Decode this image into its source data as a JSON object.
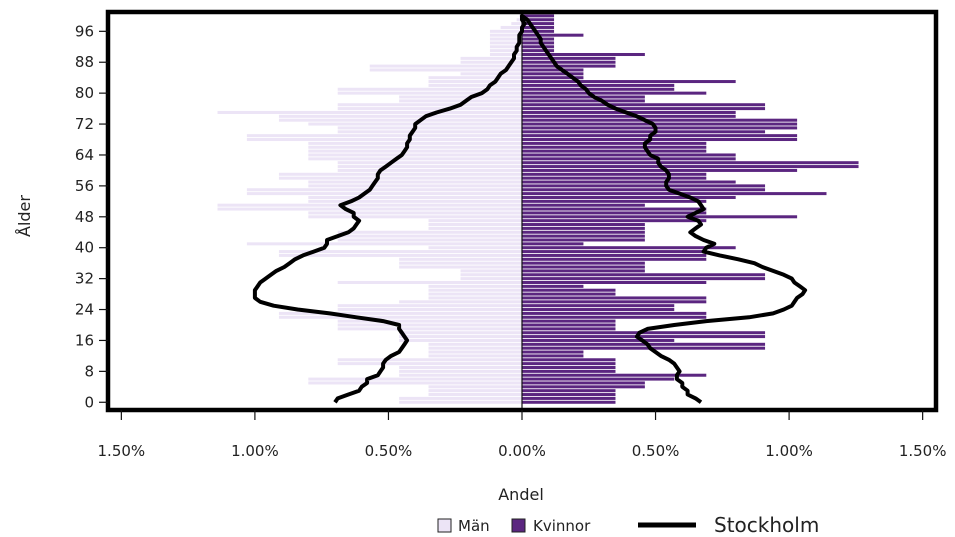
{
  "chart_data": {
    "type": "bar",
    "subtype": "population-pyramid",
    "orientation": "horizontal",
    "xlabel": "Andel",
    "ylabel": "Ålder",
    "xlim": [
      -1.55,
      1.55
    ],
    "ylim": [
      -2,
      101
    ],
    "x_ticks": [
      -1.5,
      -1.0,
      -0.5,
      0.0,
      0.5,
      1.0,
      1.5
    ],
    "x_tick_labels": [
      "1.50%",
      "1.00%",
      "0.50%",
      "0.00%",
      "0.50%",
      "1.00%",
      "1.50%"
    ],
    "y_ticks": [
      0,
      8,
      16,
      24,
      32,
      40,
      48,
      56,
      64,
      72,
      80,
      88,
      96
    ],
    "y_tick_labels": [
      "0",
      "8",
      "16",
      "24",
      "32",
      "40",
      "48",
      "56",
      "64",
      "72",
      "80",
      "88",
      "96"
    ],
    "ages": [
      0,
      1,
      2,
      3,
      4,
      5,
      6,
      7,
      8,
      9,
      10,
      11,
      12,
      13,
      14,
      15,
      16,
      17,
      18,
      19,
      20,
      21,
      22,
      23,
      24,
      25,
      26,
      27,
      28,
      29,
      30,
      31,
      32,
      33,
      34,
      35,
      36,
      37,
      38,
      39,
      40,
      41,
      42,
      43,
      44,
      45,
      46,
      47,
      48,
      49,
      50,
      51,
      52,
      53,
      54,
      55,
      56,
      57,
      58,
      59,
      60,
      61,
      62,
      63,
      64,
      65,
      66,
      67,
      68,
      69,
      70,
      71,
      72,
      73,
      74,
      75,
      76,
      77,
      78,
      79,
      80,
      81,
      82,
      83,
      84,
      85,
      86,
      87,
      88,
      89,
      90,
      91,
      92,
      93,
      94,
      95,
      96,
      97,
      98,
      99,
      100
    ],
    "series": [
      {
        "name": "Män",
        "side": "left",
        "color": "#ece4f6",
        "values": [
          0.46,
          0.46,
          0.35,
          0.35,
          0.35,
          0.8,
          0.8,
          0.46,
          0.46,
          0.46,
          0.69,
          0.69,
          0.35,
          0.35,
          0.35,
          0.35,
          0.46,
          0.46,
          0.46,
          0.69,
          0.69,
          0.69,
          0.91,
          0.91,
          0.69,
          0.69,
          0.46,
          0.35,
          0.35,
          0.35,
          0.35,
          0.69,
          0.23,
          0.23,
          0.23,
          0.46,
          0.46,
          0.46,
          0.91,
          0.91,
          0.35,
          1.03,
          0.69,
          0.69,
          0.69,
          0.35,
          0.35,
          0.35,
          0.8,
          0.8,
          1.14,
          1.14,
          0.8,
          0.8,
          1.03,
          1.03,
          0.8,
          0.8,
          0.91,
          0.91,
          0.69,
          0.69,
          0.69,
          0.8,
          0.8,
          0.8,
          0.8,
          0.8,
          1.03,
          1.03,
          0.69,
          0.69,
          0.8,
          0.91,
          0.91,
          1.14,
          0.69,
          0.69,
          0.46,
          0.46,
          0.69,
          0.69,
          0.35,
          0.35,
          0.35,
          0.23,
          0.57,
          0.57,
          0.23,
          0.23,
          0.12,
          0.12,
          0.12,
          0.12,
          0.12,
          0.12,
          0.12,
          0.08,
          0.04,
          0.02,
          0.01
        ]
      },
      {
        "name": "Kvinnor",
        "side": "right",
        "color": "#5b2680",
        "values": [
          0.35,
          0.35,
          0.35,
          0.35,
          0.46,
          0.46,
          0.57,
          0.69,
          0.35,
          0.35,
          0.35,
          0.35,
          0.23,
          0.23,
          0.91,
          0.91,
          0.57,
          0.91,
          0.91,
          0.35,
          0.35,
          0.35,
          0.69,
          0.69,
          0.57,
          0.57,
          0.69,
          0.69,
          0.35,
          0.35,
          0.23,
          0.69,
          0.91,
          0.91,
          0.46,
          0.46,
          0.46,
          0.69,
          0.69,
          0.69,
          0.8,
          0.23,
          0.46,
          0.46,
          0.46,
          0.46,
          0.46,
          0.69,
          1.03,
          0.69,
          0.69,
          0.46,
          0.69,
          0.8,
          1.14,
          0.91,
          0.91,
          0.8,
          0.69,
          0.69,
          1.03,
          1.26,
          1.26,
          0.8,
          0.8,
          0.69,
          0.69,
          0.69,
          1.03,
          1.03,
          0.91,
          1.03,
          1.03,
          1.03,
          0.8,
          0.8,
          0.91,
          0.91,
          0.46,
          0.46,
          0.69,
          0.57,
          0.57,
          0.8,
          0.23,
          0.23,
          0.23,
          0.35,
          0.35,
          0.35,
          0.46,
          0.12,
          0.12,
          0.12,
          0.12,
          0.23,
          0.12,
          0.12,
          0.12,
          0.12,
          0.12
        ]
      },
      {
        "name": "Stockholm",
        "type": "line",
        "color": "#111111",
        "points": [
          [
            -0.7,
            0
          ],
          [
            -0.69,
            1
          ],
          [
            -0.65,
            2
          ],
          [
            -0.61,
            3
          ],
          [
            -0.6,
            4
          ],
          [
            -0.58,
            5
          ],
          [
            -0.58,
            6
          ],
          [
            -0.54,
            7
          ],
          [
            -0.53,
            8
          ],
          [
            -0.52,
            9
          ],
          [
            -0.52,
            10
          ],
          [
            -0.51,
            11
          ],
          [
            -0.49,
            12
          ],
          [
            -0.46,
            13
          ],
          [
            -0.45,
            14
          ],
          [
            -0.44,
            15
          ],
          [
            -0.43,
            16
          ],
          [
            -0.44,
            17
          ],
          [
            -0.45,
            18
          ],
          [
            -0.46,
            19
          ],
          [
            -0.46,
            20
          ],
          [
            -0.52,
            21
          ],
          [
            -0.62,
            22
          ],
          [
            -0.72,
            23
          ],
          [
            -0.84,
            24
          ],
          [
            -0.93,
            25
          ],
          [
            -0.98,
            26
          ],
          [
            -1.0,
            27
          ],
          [
            -1.0,
            28
          ],
          [
            -1.0,
            29
          ],
          [
            -0.99,
            30
          ],
          [
            -0.98,
            31
          ],
          [
            -0.96,
            32
          ],
          [
            -0.94,
            33
          ],
          [
            -0.92,
            34
          ],
          [
            -0.89,
            35
          ],
          [
            -0.87,
            36
          ],
          [
            -0.85,
            37
          ],
          [
            -0.82,
            38
          ],
          [
            -0.78,
            39
          ],
          [
            -0.74,
            40
          ],
          [
            -0.73,
            41
          ],
          [
            -0.73,
            42
          ],
          [
            -0.69,
            43
          ],
          [
            -0.65,
            44
          ],
          [
            -0.63,
            45
          ],
          [
            -0.62,
            46
          ],
          [
            -0.61,
            47
          ],
          [
            -0.63,
            48
          ],
          [
            -0.63,
            49
          ],
          [
            -0.66,
            50
          ],
          [
            -0.68,
            51
          ],
          [
            -0.64,
            52
          ],
          [
            -0.61,
            53
          ],
          [
            -0.59,
            54
          ],
          [
            -0.57,
            55
          ],
          [
            -0.56,
            56
          ],
          [
            -0.55,
            57
          ],
          [
            -0.54,
            58
          ],
          [
            -0.54,
            59
          ],
          [
            -0.53,
            60
          ],
          [
            -0.51,
            61
          ],
          [
            -0.49,
            62
          ],
          [
            -0.47,
            63
          ],
          [
            -0.45,
            64
          ],
          [
            -0.44,
            65
          ],
          [
            -0.43,
            66
          ],
          [
            -0.43,
            67
          ],
          [
            -0.42,
            68
          ],
          [
            -0.42,
            69
          ],
          [
            -0.41,
            70
          ],
          [
            -0.4,
            71
          ],
          [
            -0.4,
            72
          ],
          [
            -0.38,
            73
          ],
          [
            -0.36,
            74
          ],
          [
            -0.32,
            75
          ],
          [
            -0.27,
            76
          ],
          [
            -0.23,
            77
          ],
          [
            -0.21,
            78
          ],
          [
            -0.19,
            79
          ],
          [
            -0.15,
            80
          ],
          [
            -0.13,
            81
          ],
          [
            -0.12,
            82
          ],
          [
            -0.1,
            83
          ],
          [
            -0.09,
            84
          ],
          [
            -0.08,
            85
          ],
          [
            -0.06,
            86
          ],
          [
            -0.05,
            87
          ],
          [
            -0.04,
            88
          ],
          [
            -0.03,
            89
          ],
          [
            -0.03,
            90
          ],
          [
            -0.02,
            91
          ],
          [
            -0.02,
            92
          ],
          [
            -0.01,
            93
          ],
          [
            -0.01,
            94
          ],
          [
            -0.01,
            95
          ],
          [
            0.0,
            96
          ],
          [
            0.0,
            97
          ],
          [
            0.01,
            98
          ],
          [
            0.0,
            99
          ],
          [
            0.0,
            100
          ],
          [
            0.02,
            99
          ],
          [
            0.03,
            98
          ],
          [
            0.04,
            97
          ],
          [
            0.05,
            96
          ],
          [
            0.06,
            95
          ],
          [
            0.07,
            94
          ],
          [
            0.07,
            93
          ],
          [
            0.08,
            92
          ],
          [
            0.09,
            91
          ],
          [
            0.1,
            90
          ],
          [
            0.11,
            89
          ],
          [
            0.12,
            88
          ],
          [
            0.13,
            87
          ],
          [
            0.15,
            86
          ],
          [
            0.17,
            85
          ],
          [
            0.19,
            84
          ],
          [
            0.21,
            83
          ],
          [
            0.22,
            82
          ],
          [
            0.24,
            81
          ],
          [
            0.25,
            80
          ],
          [
            0.27,
            79
          ],
          [
            0.3,
            78
          ],
          [
            0.32,
            77
          ],
          [
            0.35,
            76
          ],
          [
            0.39,
            75
          ],
          [
            0.43,
            74
          ],
          [
            0.46,
            73
          ],
          [
            0.49,
            72
          ],
          [
            0.5,
            71
          ],
          [
            0.5,
            70
          ],
          [
            0.48,
            69
          ],
          [
            0.48,
            68
          ],
          [
            0.46,
            67
          ],
          [
            0.46,
            66
          ],
          [
            0.47,
            65
          ],
          [
            0.48,
            64
          ],
          [
            0.51,
            63
          ],
          [
            0.51,
            62
          ],
          [
            0.52,
            61
          ],
          [
            0.54,
            60
          ],
          [
            0.55,
            59
          ],
          [
            0.55,
            58
          ],
          [
            0.54,
            57
          ],
          [
            0.54,
            56
          ],
          [
            0.55,
            55
          ],
          [
            0.59,
            54
          ],
          [
            0.63,
            53
          ],
          [
            0.66,
            52
          ],
          [
            0.67,
            51
          ],
          [
            0.68,
            50
          ],
          [
            0.65,
            49
          ],
          [
            0.62,
            48
          ],
          [
            0.66,
            47
          ],
          [
            0.67,
            46
          ],
          [
            0.65,
            45
          ],
          [
            0.63,
            44
          ],
          [
            0.65,
            43
          ],
          [
            0.68,
            42
          ],
          [
            0.72,
            41
          ],
          [
            0.69,
            40
          ],
          [
            0.68,
            39
          ],
          [
            0.74,
            38
          ],
          [
            0.81,
            37
          ],
          [
            0.87,
            36
          ],
          [
            0.9,
            35
          ],
          [
            0.94,
            34
          ],
          [
            0.98,
            33
          ],
          [
            1.01,
            32
          ],
          [
            1.02,
            31
          ],
          [
            1.04,
            30
          ],
          [
            1.06,
            29
          ],
          [
            1.05,
            28
          ],
          [
            1.03,
            27
          ],
          [
            1.02,
            26
          ],
          [
            1.01,
            25
          ],
          [
            0.98,
            24
          ],
          [
            0.94,
            23
          ],
          [
            0.85,
            22
          ],
          [
            0.69,
            21
          ],
          [
            0.57,
            20
          ],
          [
            0.47,
            19
          ],
          [
            0.44,
            18
          ],
          [
            0.43,
            17
          ],
          [
            0.45,
            16
          ],
          [
            0.47,
            15
          ],
          [
            0.48,
            14
          ],
          [
            0.5,
            13
          ],
          [
            0.52,
            12
          ],
          [
            0.55,
            11
          ],
          [
            0.57,
            10
          ],
          [
            0.58,
            9
          ],
          [
            0.59,
            8
          ],
          [
            0.58,
            7
          ],
          [
            0.58,
            6
          ],
          [
            0.6,
            5
          ],
          [
            0.6,
            4
          ],
          [
            0.62,
            3
          ],
          [
            0.62,
            2
          ],
          [
            0.65,
            1
          ],
          [
            0.67,
            0
          ]
        ]
      }
    ],
    "legend": {
      "placement": "bottom-right",
      "entries": [
        {
          "label": "Män",
          "type": "box"
        },
        {
          "label": "Kvinnor",
          "type": "box"
        },
        {
          "label": "Stockholm",
          "type": "line"
        }
      ]
    }
  }
}
